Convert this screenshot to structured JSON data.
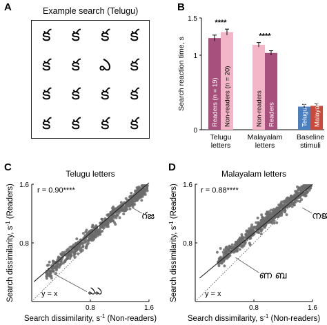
{
  "panels": {
    "a": {
      "letter": "A",
      "title": "Example search (Telugu)",
      "grid": [
        [
          "క",
          "క",
          "క",
          "క"
        ],
        [
          "క",
          "క",
          "ఎ",
          "క"
        ],
        [
          "క",
          "క",
          "క",
          "క"
        ],
        [
          "క",
          "క",
          "క",
          "క"
        ]
      ]
    },
    "b": {
      "letter": "B"
    },
    "c": {
      "letter": "C"
    },
    "d": {
      "letter": "D"
    }
  },
  "chart_data": [
    {
      "type": "bar",
      "ylabel": "Search reaction time, s",
      "ylim": [
        0,
        1.5
      ],
      "yticks": [
        "0",
        "1",
        "1.5"
      ],
      "groups": [
        {
          "label_lines": [
            "Telugu",
            "letters"
          ],
          "bars": [
            {
              "label": "Readers (n = 19)",
              "value": 1.23,
              "err": 0.04,
              "color": "#a8507d",
              "label_color": "#ffffff"
            },
            {
              "label": "Non-readers (n = 20)",
              "value": 1.31,
              "err": 0.04,
              "color": "#f2b6c8",
              "label_color": "#000000"
            }
          ],
          "sig": "****"
        },
        {
          "label_lines": [
            "Malayalam",
            "letters"
          ],
          "bars": [
            {
              "label": "Non-readers",
              "value": 1.14,
              "err": 0.03,
              "color": "#f2b6c8",
              "label_color": "#000000"
            },
            {
              "label": "Readers",
              "value": 1.03,
              "err": 0.03,
              "color": "#a8507d",
              "label_color": "#ffffff"
            }
          ],
          "sig": "****"
        },
        {
          "label_lines": [
            "Baseline",
            "stimuli"
          ],
          "bars": [
            {
              "label": "Telugu subj",
              "value": 0.31,
              "err": 0.03,
              "color": "#4a7fc0",
              "label_color": "#ffffff"
            },
            {
              "label": "Malayalam",
              "value": 0.32,
              "err": 0.03,
              "color": "#c94a3a",
              "label_color": "#ffffff"
            }
          ],
          "sig": ""
        }
      ]
    },
    {
      "type": "scatter",
      "title": "Telugu letters",
      "xlabel_main": "Search dissimilarity, s",
      "xlabel_sup": "-1",
      "xlabel_tail": " (Non-readers)",
      "ylabel_main": "Search dissimilarity, s",
      "ylabel_sup": "-1",
      "ylabel_tail": " (Readers)",
      "xlim": [
        0,
        1.6
      ],
      "ylim": [
        0,
        1.6
      ],
      "xticks": [
        "0.8",
        "1.6"
      ],
      "yticks": [
        "0.8",
        "1.6"
      ],
      "r_label": "r = 0.90****",
      "identity_label": "y = x",
      "fit": {
        "x": [
          0.03,
          1.6
        ],
        "y": [
          0.27,
          1.62
        ]
      },
      "annotations": [
        {
          "text": "గజ",
          "point": [
            1.37,
            1.28
          ]
        },
        {
          "text": "ఎఎ",
          "point": [
            0.3,
            0.38
          ]
        }
      ],
      "cloud": {
        "n": 620,
        "x_range": [
          0.2,
          1.58
        ],
        "slope": 0.85,
        "intercept": 0.22,
        "spread": 0.08,
        "seed": 7
      }
    },
    {
      "type": "scatter",
      "title": "Malayalam letters",
      "xlabel_main": "Search dissimilarity, s",
      "xlabel_sup": "-1",
      "xlabel_tail": " (Non-readers)",
      "ylabel_main": "Search dissimilarity, s",
      "ylabel_sup": "-1",
      "ylabel_tail": " (Readers)",
      "xlim": [
        0,
        1.6
      ],
      "ylim": [
        0,
        1.6
      ],
      "xticks": [
        "0.8",
        "1.6"
      ],
      "yticks": [
        "0.8",
        "1.6"
      ],
      "r_label": "r = 0.88****",
      "identity_label": "y = x",
      "fit": {
        "x": [
          0.06,
          1.6
        ],
        "y": [
          0.32,
          1.6
        ]
      },
      "annotations": [
        {
          "text": "നജ",
          "point": [
            1.46,
            1.28
          ]
        },
        {
          "text": "ണ ബ",
          "point": [
            0.55,
            0.6
          ]
        }
      ],
      "cloud": {
        "n": 620,
        "x_range": [
          0.3,
          1.58
        ],
        "slope": 0.82,
        "intercept": 0.3,
        "spread": 0.08,
        "seed": 13
      }
    }
  ]
}
